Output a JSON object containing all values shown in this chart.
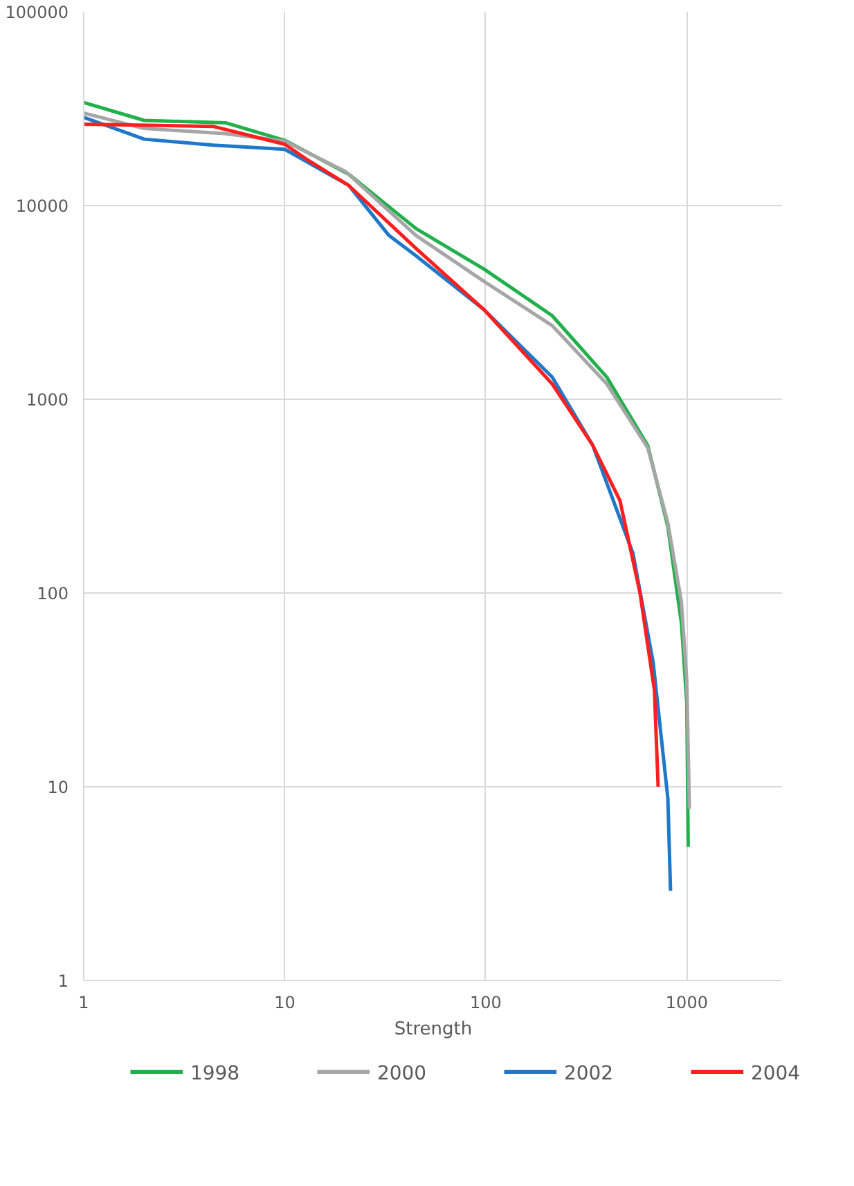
{
  "chart_data": {
    "type": "line",
    "xlabel": "Strength",
    "log": "xy",
    "grid": true,
    "legend": "bottom",
    "line_style": "solid",
    "marker": "none",
    "xlim": [
      1,
      3000
    ],
    "xticks": [
      1,
      10,
      100,
      1000
    ],
    "ylim": [
      1,
      100000
    ],
    "yticks": [
      1,
      10,
      100,
      1000,
      10000,
      100000
    ],
    "series": [
      {
        "name": "1998",
        "color": "#21b04b",
        "x": [
          1,
          2,
          5.1,
          10,
          20.8,
          45,
          98,
          214,
          400,
          640,
          805,
          940,
          1000,
          1016
        ],
        "values": [
          34000,
          27500,
          26700,
          21700,
          14500,
          7600,
          4700,
          2700,
          1300,
          575,
          220,
          70,
          27,
          4.9
        ]
      },
      {
        "name": "2000",
        "color": "#a6a6a6",
        "x": [
          1,
          2,
          5,
          10,
          20,
          45,
          100,
          214,
          400,
          640,
          805,
          940,
          1000,
          1030
        ],
        "values": [
          30000,
          25000,
          23500,
          21500,
          15000,
          7000,
          4000,
          2400,
          1200,
          560,
          230,
          90,
          35,
          7.7
        ]
      },
      {
        "name": "2002",
        "color": "#1f78c8",
        "x": [
          1,
          2,
          4.4,
          10,
          20.8,
          33,
          45,
          98,
          214,
          340,
          540,
          680,
          805,
          830
        ],
        "values": [
          28500,
          22000,
          20500,
          19500,
          12700,
          7000,
          5500,
          2900,
          1300,
          580,
          160,
          44,
          8.7,
          2.9
        ]
      },
      {
        "name": "2004",
        "color": "#ff1f1f",
        "x": [
          1,
          4.4,
          10,
          13.2,
          20.8,
          45,
          98,
          214,
          340,
          465,
          585,
          690,
          720
        ],
        "values": [
          26300,
          25600,
          20700,
          17000,
          12700,
          6000,
          2900,
          1200,
          580,
          300,
          100,
          31.5,
          10
        ]
      }
    ]
  }
}
